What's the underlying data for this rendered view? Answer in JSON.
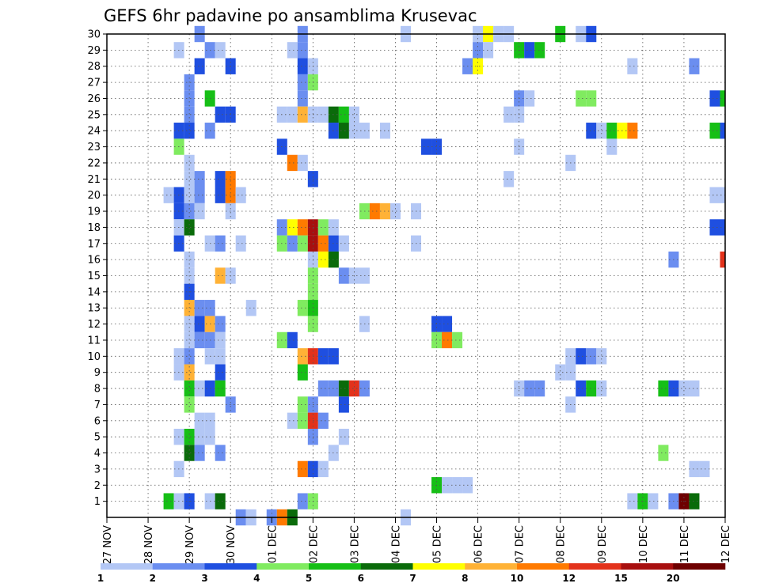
{
  "chart_data": {
    "type": "heatmap",
    "title": "GEFS 6hr padavine po ansamblima Krusevac",
    "xlabel": "",
    "ylabel": "",
    "x_tick_labels": [
      "27 NOV",
      "28 NOV",
      "29 NOV",
      "30 NOV",
      "01 DEC",
      "02 DEC",
      "03 DEC",
      "04 DEC",
      "05 DEC",
      "06 DEC",
      "07 DEC",
      "08 DEC",
      "09 DEC",
      "10 DEC",
      "11 DEC",
      "12 DEC"
    ],
    "x_range": [
      0,
      60
    ],
    "y_tick_labels": [
      "1",
      "2",
      "3",
      "4",
      "5",
      "6",
      "7",
      "8",
      "9",
      "10",
      "11",
      "12",
      "13",
      "14",
      "15",
      "16",
      "17",
      "18",
      "19",
      "20",
      "21",
      "22",
      "23",
      "24",
      "25",
      "26",
      "27",
      "28",
      "29",
      "30"
    ],
    "y_range": [
      1,
      30
    ],
    "grid": true,
    "legend": {
      "placement": "bottom",
      "boundaries": [
        "1",
        "2",
        "3",
        "4",
        "5",
        "6",
        "7",
        "8",
        "10",
        "12",
        "15",
        "20"
      ],
      "colors": [
        "#b3c7f5",
        "#6b8ef0",
        "#1f4fe0",
        "#80eb60",
        "#16bf16",
        "#0a6b0a",
        "#ffff00",
        "#ffb236",
        "#ff7a00",
        "#e3321b",
        "#a80f0f",
        "#6e0000"
      ]
    },
    "cells": [
      [
        9,
        30,
        2
      ],
      [
        19,
        30,
        2
      ],
      [
        29,
        30,
        1
      ],
      [
        36,
        30,
        1
      ],
      [
        37,
        30,
        7
      ],
      [
        38,
        30,
        1
      ],
      [
        39,
        30,
        1
      ],
      [
        44,
        30,
        5
      ],
      [
        46,
        30,
        1
      ],
      [
        47,
        30,
        3
      ],
      [
        7,
        29,
        1
      ],
      [
        10,
        29,
        2
      ],
      [
        11,
        29,
        1
      ],
      [
        18,
        29,
        1
      ],
      [
        19,
        29,
        2
      ],
      [
        36,
        29,
        2
      ],
      [
        37,
        29,
        1
      ],
      [
        40,
        29,
        5
      ],
      [
        41,
        29,
        3
      ],
      [
        42,
        29,
        5
      ],
      [
        9,
        28,
        3
      ],
      [
        12,
        28,
        3
      ],
      [
        19,
        28,
        3
      ],
      [
        20,
        28,
        1
      ],
      [
        35,
        28,
        2
      ],
      [
        36,
        28,
        7
      ],
      [
        51,
        28,
        1
      ],
      [
        57,
        28,
        2
      ],
      [
        8,
        27,
        2
      ],
      [
        19,
        27,
        2
      ],
      [
        20,
        27,
        4
      ],
      [
        8,
        26,
        2
      ],
      [
        10,
        26,
        5
      ],
      [
        19,
        26,
        2
      ],
      [
        40,
        26,
        2
      ],
      [
        41,
        26,
        1
      ],
      [
        46,
        26,
        4
      ],
      [
        47,
        26,
        4
      ],
      [
        59,
        26,
        3
      ],
      [
        60,
        26,
        5
      ],
      [
        8,
        25,
        2
      ],
      [
        11,
        25,
        3
      ],
      [
        12,
        25,
        3
      ],
      [
        17,
        25,
        1
      ],
      [
        18,
        25,
        1
      ],
      [
        19,
        25,
        8
      ],
      [
        20,
        25,
        1
      ],
      [
        21,
        25,
        1
      ],
      [
        22,
        25,
        6
      ],
      [
        23,
        25,
        5
      ],
      [
        24,
        25,
        1
      ],
      [
        39,
        25,
        1
      ],
      [
        40,
        25,
        1
      ],
      [
        7,
        24,
        3
      ],
      [
        8,
        24,
        3
      ],
      [
        10,
        24,
        2
      ],
      [
        22,
        24,
        3
      ],
      [
        23,
        24,
        6
      ],
      [
        24,
        24,
        1
      ],
      [
        25,
        24,
        1
      ],
      [
        27,
        24,
        1
      ],
      [
        47,
        24,
        3
      ],
      [
        48,
        24,
        1
      ],
      [
        49,
        24,
        5
      ],
      [
        50,
        24,
        7
      ],
      [
        51,
        24,
        9
      ],
      [
        59,
        24,
        5
      ],
      [
        60,
        24,
        3
      ],
      [
        7,
        23,
        4
      ],
      [
        17,
        23,
        3
      ],
      [
        31,
        23,
        3
      ],
      [
        32,
        23,
        3
      ],
      [
        40,
        23,
        1
      ],
      [
        49,
        23,
        1
      ],
      [
        8,
        22,
        1
      ],
      [
        18,
        22,
        9
      ],
      [
        19,
        22,
        1
      ],
      [
        45,
        22,
        1
      ],
      [
        8,
        21,
        1
      ],
      [
        9,
        21,
        2
      ],
      [
        11,
        21,
        3
      ],
      [
        12,
        21,
        9
      ],
      [
        20,
        21,
        3
      ],
      [
        39,
        21,
        1
      ],
      [
        6,
        20,
        1
      ],
      [
        7,
        20,
        3
      ],
      [
        8,
        20,
        1
      ],
      [
        9,
        20,
        2
      ],
      [
        11,
        20,
        3
      ],
      [
        12,
        20,
        9
      ],
      [
        13,
        20,
        1
      ],
      [
        59,
        20,
        1
      ],
      [
        60,
        20,
        1
      ],
      [
        7,
        19,
        3
      ],
      [
        8,
        19,
        2
      ],
      [
        9,
        19,
        1
      ],
      [
        12,
        19,
        1
      ],
      [
        25,
        19,
        4
      ],
      [
        26,
        19,
        9
      ],
      [
        27,
        19,
        8
      ],
      [
        28,
        19,
        1
      ],
      [
        30,
        19,
        1
      ],
      [
        7,
        18,
        1
      ],
      [
        8,
        18,
        6
      ],
      [
        17,
        18,
        2
      ],
      [
        18,
        18,
        7
      ],
      [
        19,
        18,
        9
      ],
      [
        20,
        18,
        11
      ],
      [
        21,
        18,
        4
      ],
      [
        22,
        18,
        1
      ],
      [
        59,
        18,
        3
      ],
      [
        60,
        18,
        3
      ],
      [
        7,
        17,
        3
      ],
      [
        10,
        17,
        1
      ],
      [
        11,
        17,
        2
      ],
      [
        13,
        17,
        1
      ],
      [
        17,
        17,
        4
      ],
      [
        18,
        17,
        2
      ],
      [
        19,
        17,
        4
      ],
      [
        20,
        17,
        11
      ],
      [
        21,
        17,
        9
      ],
      [
        22,
        17,
        3
      ],
      [
        23,
        17,
        1
      ],
      [
        30,
        17,
        1
      ],
      [
        8,
        16,
        1
      ],
      [
        20,
        16,
        1
      ],
      [
        21,
        16,
        7
      ],
      [
        22,
        16,
        6
      ],
      [
        55,
        16,
        2
      ],
      [
        60,
        16,
        10
      ],
      [
        8,
        15,
        1
      ],
      [
        11,
        15,
        8
      ],
      [
        12,
        15,
        1
      ],
      [
        20,
        15,
        4
      ],
      [
        23,
        15,
        2
      ],
      [
        24,
        15,
        1
      ],
      [
        25,
        15,
        1
      ],
      [
        8,
        14,
        3
      ],
      [
        20,
        14,
        4
      ],
      [
        8,
        13,
        8
      ],
      [
        9,
        13,
        2
      ],
      [
        10,
        13,
        2
      ],
      [
        14,
        13,
        1
      ],
      [
        19,
        13,
        4
      ],
      [
        20,
        13,
        5
      ],
      [
        8,
        12,
        1
      ],
      [
        9,
        12,
        3
      ],
      [
        10,
        12,
        8
      ],
      [
        11,
        12,
        2
      ],
      [
        20,
        12,
        4
      ],
      [
        25,
        12,
        1
      ],
      [
        32,
        12,
        3
      ],
      [
        33,
        12,
        3
      ],
      [
        8,
        11,
        1
      ],
      [
        9,
        11,
        2
      ],
      [
        10,
        11,
        2
      ],
      [
        11,
        11,
        1
      ],
      [
        17,
        11,
        4
      ],
      [
        18,
        11,
        3
      ],
      [
        32,
        11,
        4
      ],
      [
        33,
        11,
        9
      ],
      [
        34,
        11,
        4
      ],
      [
        7,
        10,
        1
      ],
      [
        8,
        10,
        2
      ],
      [
        10,
        10,
        1
      ],
      [
        11,
        10,
        1
      ],
      [
        19,
        10,
        8
      ],
      [
        20,
        10,
        10
      ],
      [
        21,
        10,
        3
      ],
      [
        22,
        10,
        3
      ],
      [
        45,
        10,
        1
      ],
      [
        46,
        10,
        3
      ],
      [
        47,
        10,
        2
      ],
      [
        48,
        10,
        1
      ],
      [
        7,
        9,
        1
      ],
      [
        8,
        9,
        8
      ],
      [
        11,
        9,
        3
      ],
      [
        19,
        9,
        5
      ],
      [
        44,
        9,
        1
      ],
      [
        45,
        9,
        1
      ],
      [
        8,
        8,
        5
      ],
      [
        9,
        8,
        1
      ],
      [
        10,
        8,
        3
      ],
      [
        11,
        8,
        5
      ],
      [
        21,
        8,
        2
      ],
      [
        22,
        8,
        2
      ],
      [
        23,
        8,
        6
      ],
      [
        24,
        8,
        10
      ],
      [
        25,
        8,
        2
      ],
      [
        40,
        8,
        1
      ],
      [
        41,
        8,
        2
      ],
      [
        42,
        8,
        2
      ],
      [
        46,
        8,
        3
      ],
      [
        47,
        8,
        5
      ],
      [
        48,
        8,
        1
      ],
      [
        54,
        8,
        5
      ],
      [
        55,
        8,
        3
      ],
      [
        56,
        8,
        1
      ],
      [
        57,
        8,
        1
      ],
      [
        8,
        7,
        4
      ],
      [
        12,
        7,
        2
      ],
      [
        19,
        7,
        4
      ],
      [
        20,
        7,
        2
      ],
      [
        23,
        7,
        3
      ],
      [
        45,
        7,
        1
      ],
      [
        9,
        6,
        1
      ],
      [
        10,
        6,
        1
      ],
      [
        18,
        6,
        1
      ],
      [
        19,
        6,
        4
      ],
      [
        20,
        6,
        10
      ],
      [
        21,
        6,
        2
      ],
      [
        7,
        5,
        1
      ],
      [
        8,
        5,
        5
      ],
      [
        9,
        5,
        1
      ],
      [
        10,
        5,
        1
      ],
      [
        20,
        5,
        2
      ],
      [
        23,
        5,
        1
      ],
      [
        8,
        4,
        6
      ],
      [
        9,
        4,
        2
      ],
      [
        11,
        4,
        2
      ],
      [
        22,
        4,
        1
      ],
      [
        54,
        4,
        4
      ],
      [
        7,
        3,
        1
      ],
      [
        19,
        3,
        9
      ],
      [
        20,
        3,
        3
      ],
      [
        21,
        3,
        1
      ],
      [
        57,
        3,
        1
      ],
      [
        58,
        3,
        1
      ],
      [
        32,
        2,
        5
      ],
      [
        33,
        2,
        1
      ],
      [
        34,
        2,
        1
      ],
      [
        35,
        2,
        1
      ],
      [
        6,
        1,
        5
      ],
      [
        7,
        1,
        1
      ],
      [
        8,
        1,
        3
      ],
      [
        10,
        1,
        1
      ],
      [
        11,
        1,
        6
      ],
      [
        19,
        1,
        2
      ],
      [
        20,
        1,
        4
      ],
      [
        51,
        1,
        1
      ],
      [
        52,
        1,
        5
      ],
      [
        53,
        1,
        1
      ],
      [
        55,
        1,
        2
      ],
      [
        56,
        1,
        12
      ],
      [
        57,
        1,
        6
      ],
      [
        13,
        0,
        2
      ],
      [
        14,
        0,
        1
      ],
      [
        16,
        0,
        2
      ],
      [
        17,
        0,
        9
      ],
      [
        18,
        0,
        6
      ],
      [
        29,
        0,
        1
      ]
    ]
  }
}
